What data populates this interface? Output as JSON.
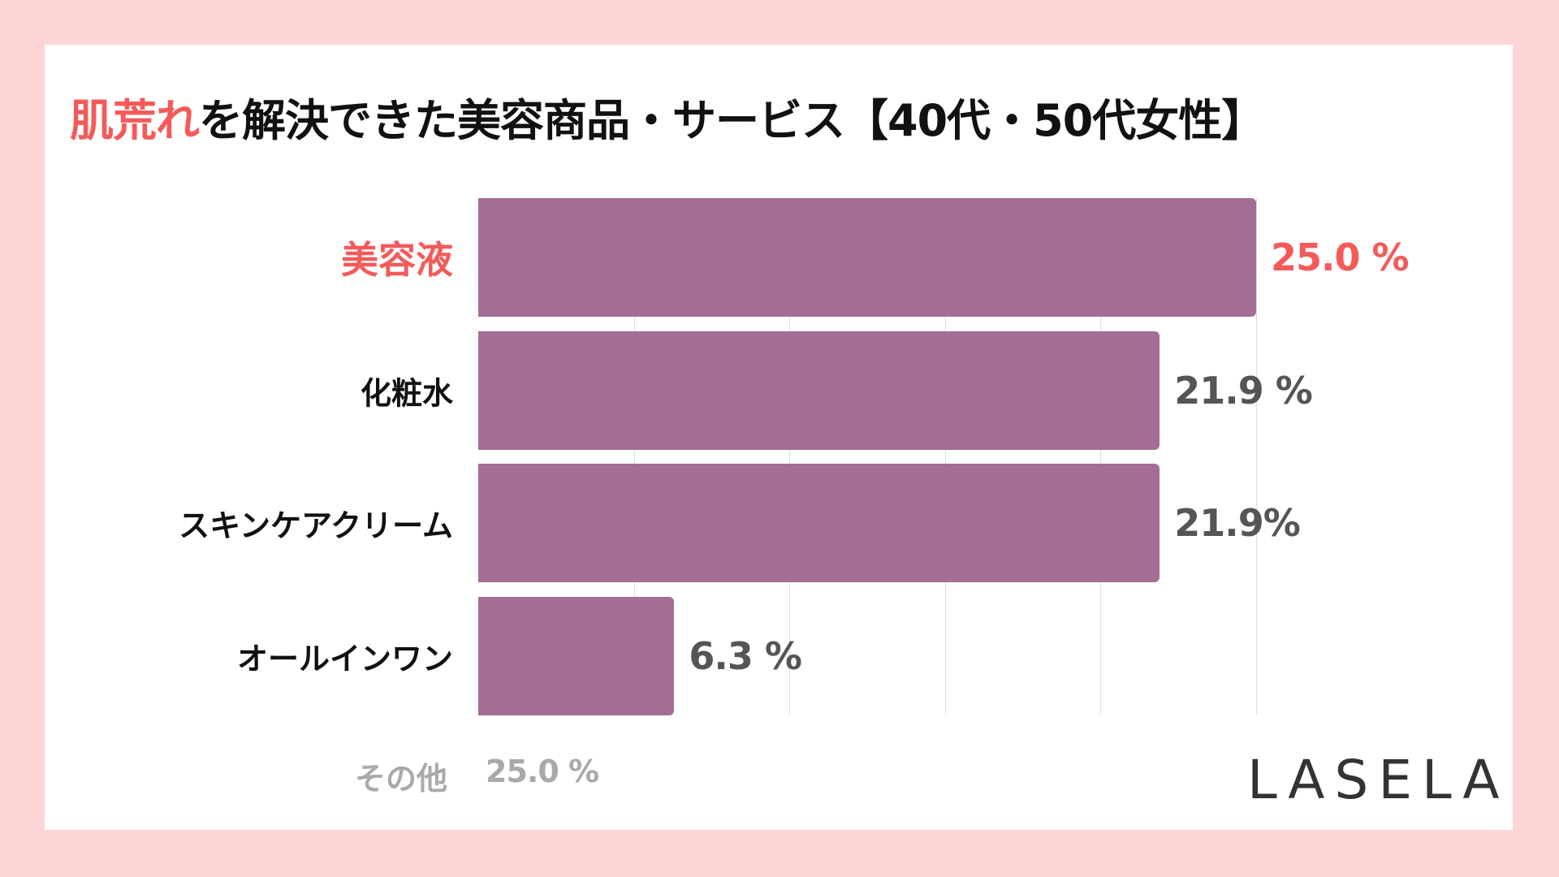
{
  "title": {
    "highlight": "肌荒れ",
    "rest": "を解決できた美容商品・サービス【40代・50代女性】"
  },
  "colors": {
    "background": "#fdd5d6",
    "bar": "#a46d94",
    "highlight": "#f45a5a",
    "value": "#555555",
    "muted": "#a9a9a9"
  },
  "chart_data": {
    "type": "bar",
    "orientation": "horizontal",
    "categories": [
      "美容液",
      "化粧水",
      "スキンケアクリーム",
      "オールインワン"
    ],
    "values": [
      25.0,
      21.9,
      21.9,
      6.3
    ],
    "value_labels": [
      "25.0 %",
      "21.9 %",
      "21.9%",
      "6.3 %"
    ],
    "xlim": [
      0,
      25
    ],
    "grid_step": 5,
    "grid": true,
    "highlighted_category": "美容液"
  },
  "other": {
    "label": "その他",
    "value": "25.0 %"
  },
  "logo": "LASELA"
}
